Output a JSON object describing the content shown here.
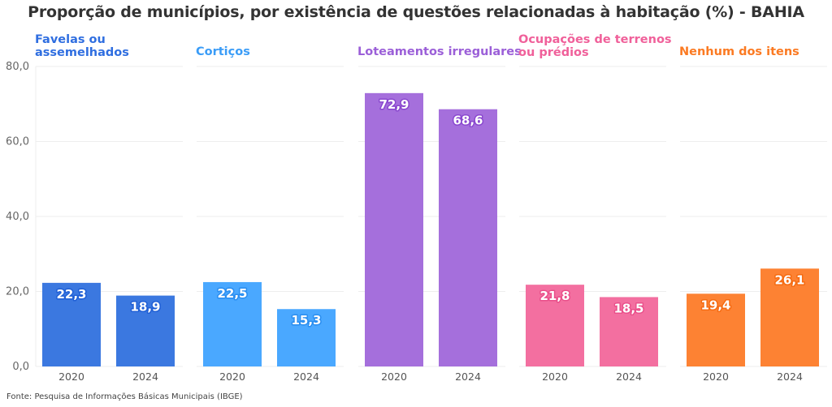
{
  "chart_data": {
    "type": "bar",
    "title": "Proporção de municípios, por existência de questões relacionadas à habitação (%) - BAHIA",
    "xlabel": "",
    "ylabel": "",
    "ylim": [
      0,
      80
    ],
    "yticks": [
      "0,0",
      "20,0",
      "40,0",
      "60,0",
      "80,0"
    ],
    "ytick_values": [
      0,
      20,
      40,
      60,
      80
    ],
    "grid": true,
    "categories": [
      "2020",
      "2024"
    ],
    "panels": [
      {
        "name": "Favelas ou assemelhados",
        "title_lines": [
          "Favelas ou",
          "assemelhados"
        ],
        "color": "#3b78e0",
        "title_color": "#2f6ee0",
        "label_stroke": "#1f5fd6",
        "values": [
          22.3,
          18.9
        ],
        "labels": [
          "22,3",
          "18,9"
        ]
      },
      {
        "name": "Cortiços",
        "title_lines": [
          "Cortiços"
        ],
        "color": "#4aa8ff",
        "title_color": "#3a9cf7",
        "label_stroke": "#2a8ef0",
        "values": [
          22.5,
          15.3
        ],
        "labels": [
          "22,5",
          "15,3"
        ]
      },
      {
        "name": "Loteamentos irregulares",
        "title_lines": [
          "Loteamentos irregulares"
        ],
        "color": "#a56fdc",
        "title_color": "#9b5fd8",
        "label_stroke": "#8a48cf",
        "values": [
          72.9,
          68.6
        ],
        "labels": [
          "72,9",
          "68,6"
        ]
      },
      {
        "name": "Ocupações de terrenos ou prédios",
        "title_lines": [
          "Ocupações de terrenos",
          "ou prédios"
        ],
        "color": "#f36fa0",
        "title_color": "#f0609a",
        "label_stroke": "#ea4f8a",
        "values": [
          21.8,
          18.5
        ],
        "labels": [
          "21,8",
          "18,5"
        ]
      },
      {
        "name": "Nenhum dos itens",
        "title_lines": [
          "Nenhum dos itens"
        ],
        "color": "#fd8233",
        "title_color": "#fb7a22",
        "label_stroke": "#f56a10",
        "values": [
          19.4,
          26.1
        ],
        "labels": [
          "19,4",
          "26,1"
        ]
      }
    ],
    "source": "Fonte: Pesquisa de Informações Básicas Municipais (IBGE)"
  }
}
